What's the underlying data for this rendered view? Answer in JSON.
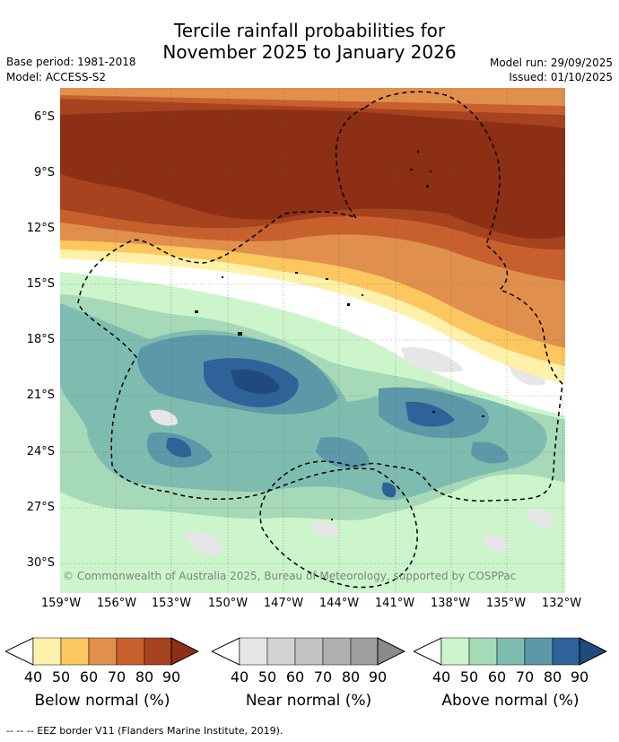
{
  "title_line1": "Tercile rainfall probabilities for",
  "title_line2": "November 2025 to January 2026",
  "base_period": "Base period: 1981-2018",
  "model": "Model: ACCESS-S2",
  "model_run": "Model run: 29/09/2025",
  "issued": "Issued: 01/10/2025",
  "copyright": "© Commonwealth of Australia 2025, Bureau of Meteorology, supported by COSPPac",
  "lat_ticks": [
    "6°S",
    "9°S",
    "12°S",
    "15°S",
    "18°S",
    "21°S",
    "24°S",
    "27°S",
    "30°S"
  ],
  "lon_ticks": [
    "159°W",
    "156°W",
    "153°W",
    "150°W",
    "147°W",
    "144°W",
    "141°W",
    "138°W",
    "135°W",
    "132°W"
  ],
  "extent": {
    "lon_min": 159.0,
    "lon_max": 131.9,
    "lat_min": 4.5,
    "lat_max": 31.5
  },
  "legends": [
    {
      "title": "Below normal (%)",
      "ticks": [
        "40",
        "50",
        "60",
        "70",
        "80",
        "90"
      ],
      "colors": [
        "#fff1a9",
        "#fcc75f",
        "#e0904c",
        "#c8602e",
        "#a8431f",
        "#8c2f14"
      ]
    },
    {
      "title": "Near normal (%)",
      "ticks": [
        "40",
        "50",
        "60",
        "70",
        "80",
        "90"
      ],
      "colors": [
        "#e6e6e6",
        "#d4d4d4",
        "#c2c2c2",
        "#b0b0b0",
        "#9e9e9e",
        "#8a8a8a"
      ]
    },
    {
      "title": "Above normal (%)",
      "ticks": [
        "40",
        "50",
        "60",
        "70",
        "80",
        "90"
      ],
      "colors": [
        "#ccf5cc",
        "#a6d9b8",
        "#7fbcb0",
        "#5c98a8",
        "#2f6299",
        "#1e4a80"
      ]
    }
  ],
  "eez_note": "--  --  -- EEZ border V11 (Flanders Marine Institute, 2019)."
}
